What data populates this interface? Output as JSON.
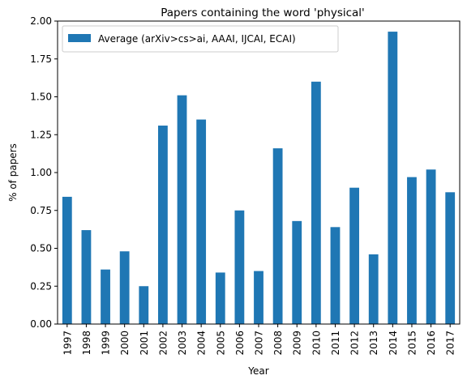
{
  "chart_data": {
    "type": "bar",
    "title": "Papers containing the word 'physical'",
    "xlabel": "Year",
    "ylabel": "% of papers",
    "categories": [
      "1997",
      "1998",
      "1999",
      "2000",
      "2001",
      "2002",
      "2003",
      "2004",
      "2005",
      "2006",
      "2007",
      "2008",
      "2009",
      "2010",
      "2011",
      "2012",
      "2013",
      "2014",
      "2015",
      "2016",
      "2017"
    ],
    "series": [
      {
        "name": "Average (arXiv>cs>ai, AAAI, IJCAI, ECAI)",
        "color": "#1f77b4",
        "values": [
          0.84,
          0.62,
          0.36,
          0.48,
          0.25,
          1.31,
          1.51,
          1.35,
          0.34,
          0.75,
          0.35,
          1.16,
          0.68,
          1.6,
          0.64,
          0.9,
          0.46,
          1.93,
          0.97,
          1.02,
          0.87
        ]
      }
    ],
    "ylim": [
      0,
      2.0
    ],
    "yticks": [
      "0.00",
      "0.25",
      "0.50",
      "0.75",
      "1.00",
      "1.25",
      "1.50",
      "1.75",
      "2.00"
    ],
    "grid": false,
    "legend_position": "top-left"
  }
}
